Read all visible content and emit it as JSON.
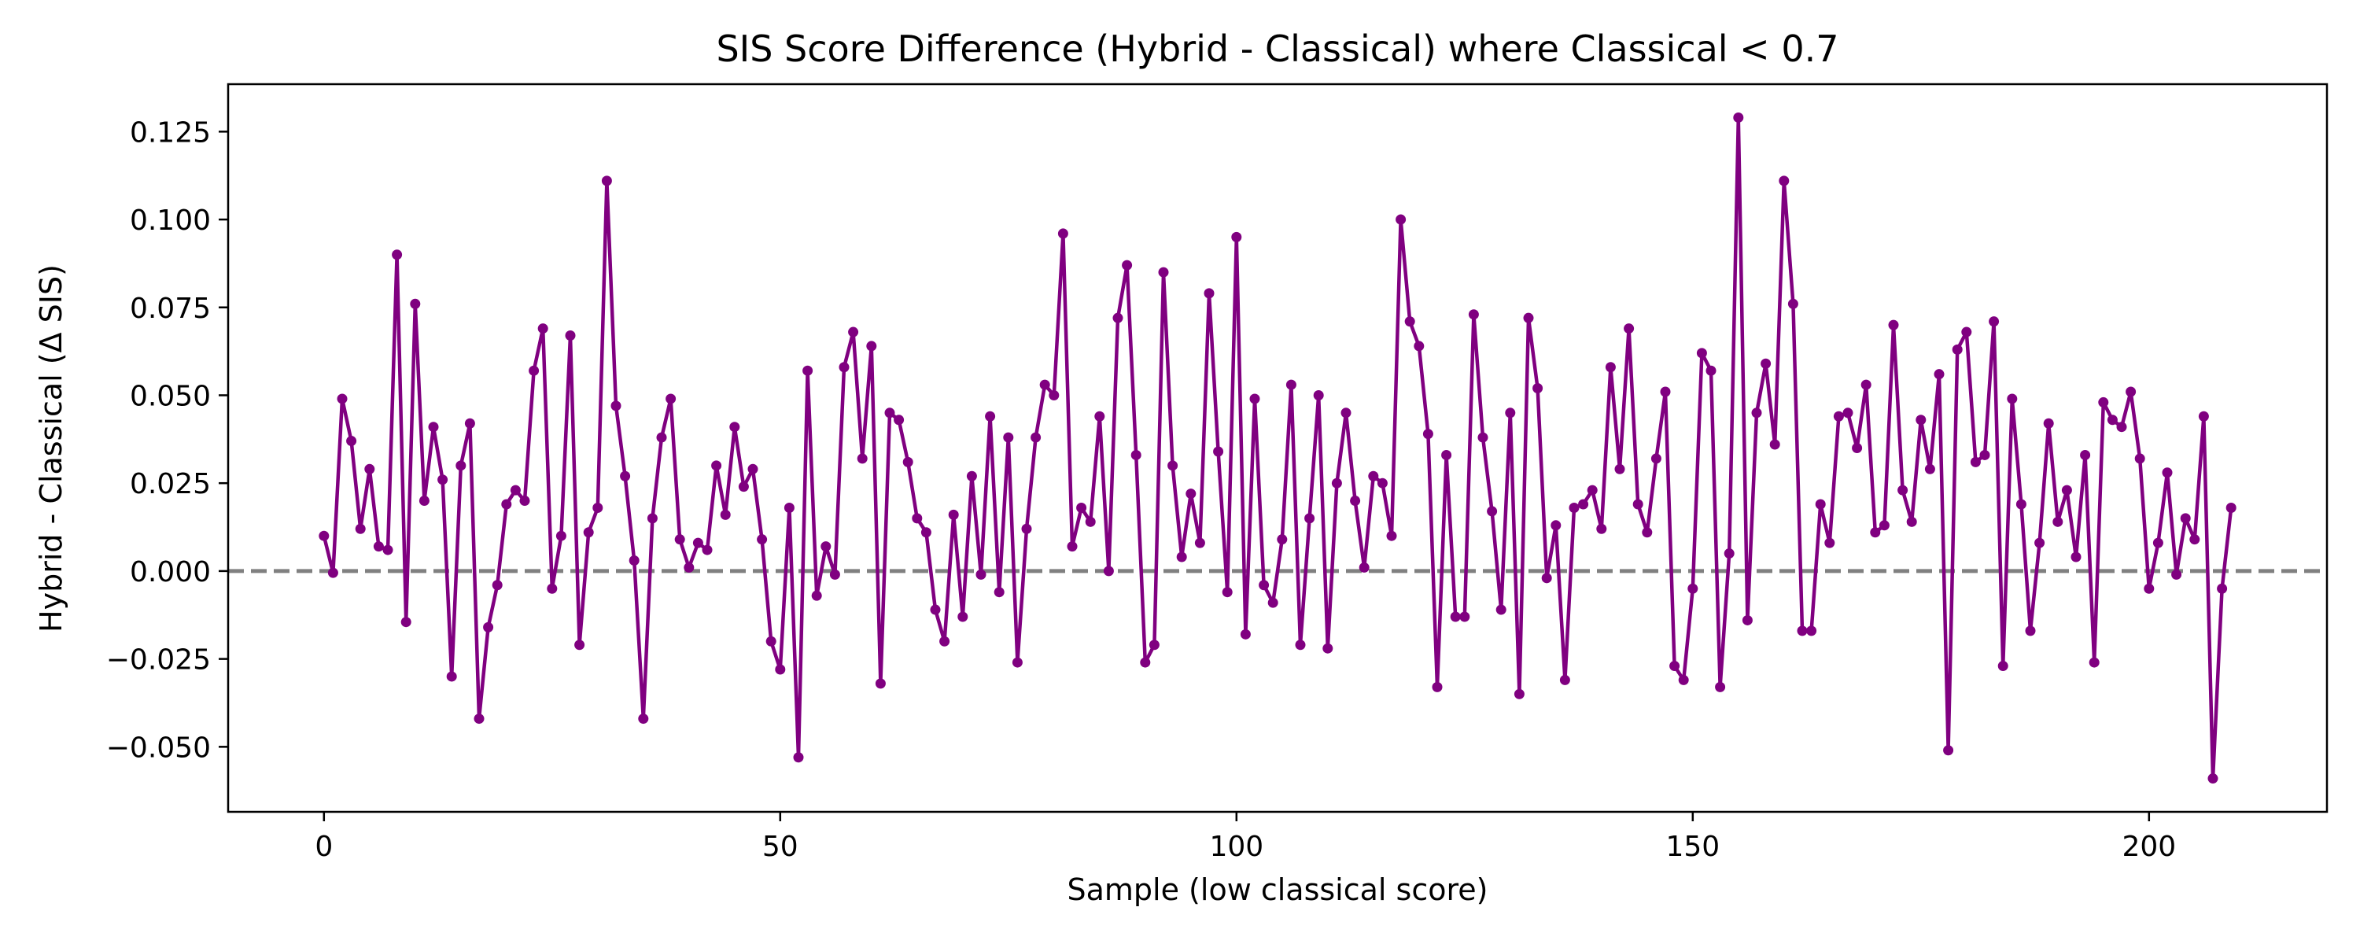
{
  "chart_data": {
    "type": "line",
    "title": "SIS Score Difference (Hybrid - Classical) where Classical < 0.7",
    "xlabel": "Sample (low classical score)",
    "ylabel": "Hybrid - Classical (Δ SIS)",
    "xlim": [
      -10.5,
      219.5
    ],
    "ylim": [
      -0.0685,
      0.1385
    ],
    "xticks": [
      0,
      50,
      100,
      150,
      200
    ],
    "xtick_labels": [
      "0",
      "50",
      "100",
      "150",
      "200"
    ],
    "yticks": [
      -0.05,
      -0.025,
      0.0,
      0.025,
      0.05,
      0.075,
      0.1,
      0.125
    ],
    "ytick_labels": [
      "−0.050",
      "−0.025",
      "0.000",
      "0.025",
      "0.050",
      "0.075",
      "0.100",
      "0.125"
    ],
    "grid": false,
    "reference_line": {
      "y": 0,
      "style": "dashed",
      "color": "#808080"
    },
    "series": [
      {
        "color": "#800080",
        "marker": "circle",
        "x_start": 0,
        "values": [
          0.01,
          -0.0005,
          0.049,
          0.037,
          0.012,
          0.029,
          0.007,
          0.006,
          0.09,
          -0.0145,
          0.076,
          0.02,
          0.041,
          0.026,
          -0.03,
          0.03,
          0.042,
          -0.042,
          -0.016,
          -0.004,
          0.019,
          0.023,
          0.02,
          0.057,
          0.069,
          -0.005,
          0.01,
          0.067,
          -0.021,
          0.011,
          0.018,
          0.111,
          0.047,
          0.027,
          0.003,
          -0.042,
          0.015,
          0.038,
          0.049,
          0.009,
          0.001,
          0.008,
          0.006,
          0.03,
          0.016,
          0.041,
          0.024,
          0.029,
          0.009,
          -0.02,
          -0.028,
          0.018,
          -0.053,
          0.057,
          -0.007,
          0.007,
          -0.001,
          0.058,
          0.068,
          0.032,
          0.064,
          -0.032,
          0.045,
          0.043,
          0.031,
          0.015,
          0.011,
          -0.011,
          -0.02,
          0.016,
          -0.013,
          0.027,
          -0.001,
          0.044,
          -0.006,
          0.038,
          -0.026,
          0.012,
          0.038,
          0.053,
          0.05,
          0.096,
          0.007,
          0.018,
          0.014,
          0.044,
          0.0,
          0.072,
          0.087,
          0.033,
          -0.026,
          -0.021,
          0.085,
          0.03,
          0.004,
          0.022,
          0.008,
          0.079,
          0.034,
          -0.006,
          0.095,
          -0.018,
          0.049,
          -0.004,
          -0.009,
          0.009,
          0.053,
          -0.021,
          0.015,
          0.05,
          -0.022,
          0.025,
          0.045,
          0.02,
          0.001,
          0.027,
          0.025,
          0.01,
          0.1,
          0.071,
          0.064,
          0.039,
          -0.033,
          0.033,
          -0.013,
          -0.013,
          0.073,
          0.038,
          0.017,
          -0.011,
          0.045,
          -0.035,
          0.072,
          0.052,
          -0.002,
          0.013,
          -0.031,
          0.018,
          0.019,
          0.023,
          0.012,
          0.058,
          0.029,
          0.069,
          0.019,
          0.011,
          0.032,
          0.051,
          -0.027,
          -0.031,
          -0.005,
          0.062,
          0.057,
          -0.033,
          0.005,
          0.129,
          -0.014,
          0.045,
          0.059,
          0.036,
          0.111,
          0.076,
          -0.017,
          -0.017,
          0.019,
          0.008,
          0.044,
          0.045,
          0.035,
          0.053,
          0.011,
          0.013,
          0.07,
          0.023,
          0.014,
          0.043,
          0.029,
          0.056,
          -0.051,
          0.063,
          0.068,
          0.031,
          0.033,
          0.071,
          -0.027,
          0.049,
          0.019,
          -0.017,
          0.008,
          0.042,
          0.014,
          0.023,
          0.004,
          0.033,
          -0.026,
          0.048,
          0.043,
          0.041,
          0.051,
          0.032,
          -0.005,
          0.008,
          0.028,
          -0.001,
          0.015,
          0.009,
          0.044,
          -0.059,
          -0.005,
          0.018
        ]
      }
    ]
  }
}
